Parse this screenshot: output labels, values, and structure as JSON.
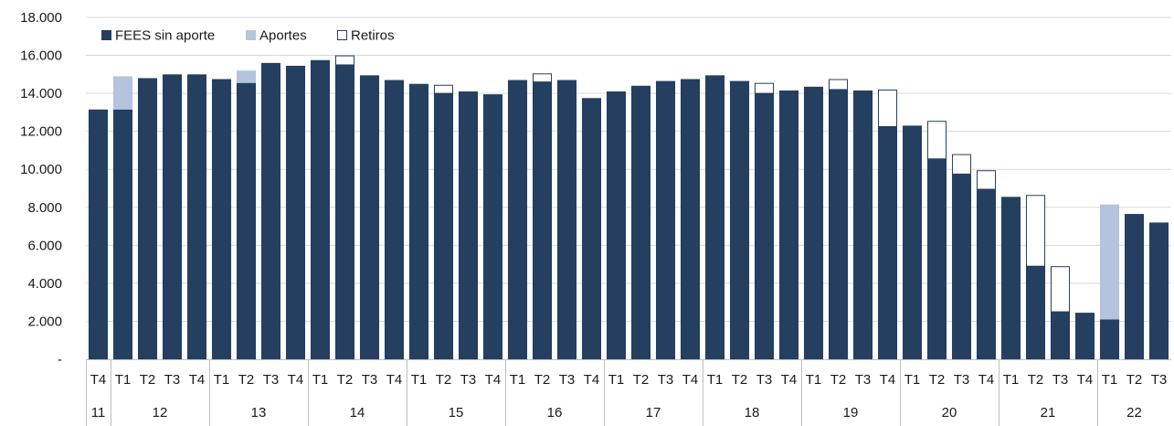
{
  "chart_data": {
    "type": "bar",
    "stacked": true,
    "ylim": [
      0,
      18000
    ],
    "yticks": [
      {
        "value": 0,
        "label": "-"
      },
      {
        "value": 2000,
        "label": "2.000"
      },
      {
        "value": 4000,
        "label": "4.000"
      },
      {
        "value": 6000,
        "label": "6.000"
      },
      {
        "value": 8000,
        "label": "8.000"
      },
      {
        "value": 10000,
        "label": "10.000"
      },
      {
        "value": 12000,
        "label": "12.000"
      },
      {
        "value": 14000,
        "label": "14.000"
      },
      {
        "value": 16000,
        "label": "16.000"
      },
      {
        "value": 18000,
        "label": "18.000"
      }
    ],
    "grid": true,
    "legend": {
      "position": "top-left",
      "items": [
        {
          "key": "base",
          "name": "FEES sin aporte",
          "color": "#243f60"
        },
        {
          "key": "aportes",
          "name": "Aportes",
          "color": "#b4c3de"
        },
        {
          "key": "retiros",
          "name": "Retiros",
          "color": "#ffffff"
        }
      ]
    },
    "categories": [
      "T4",
      "T1",
      "T2",
      "T3",
      "T4",
      "T1",
      "T2",
      "T3",
      "T4",
      "T1",
      "T2",
      "T3",
      "T4",
      "T1",
      "T2",
      "T3",
      "T4",
      "T1",
      "T2",
      "T3",
      "T4",
      "T1",
      "T2",
      "T3",
      "T4",
      "T1",
      "T2",
      "T3",
      "T4",
      "T1",
      "T2",
      "T3",
      "T4",
      "T1",
      "T2",
      "T3",
      "T4",
      "T1",
      "T2",
      "T3",
      "T4",
      "T1",
      "T2",
      "T3"
    ],
    "year_groups": [
      {
        "label": "11",
        "count": 1
      },
      {
        "label": "12",
        "count": 4
      },
      {
        "label": "13",
        "count": 4
      },
      {
        "label": "14",
        "count": 4
      },
      {
        "label": "15",
        "count": 4
      },
      {
        "label": "16",
        "count": 4
      },
      {
        "label": "17",
        "count": 4
      },
      {
        "label": "18",
        "count": 4
      },
      {
        "label": "19",
        "count": 4
      },
      {
        "label": "20",
        "count": 4
      },
      {
        "label": "21",
        "count": 4
      },
      {
        "label": "22",
        "count": 3
      }
    ],
    "series": [
      {
        "name": "FEES sin aporte",
        "values": [
          13150,
          13150,
          14800,
          15000,
          15000,
          14750,
          14550,
          15600,
          15450,
          15750,
          15500,
          14950,
          14700,
          14500,
          14000,
          14100,
          13950,
          14700,
          14600,
          14700,
          13750,
          14100,
          14400,
          14650,
          14750,
          14950,
          14650,
          14000,
          14150,
          14350,
          14200,
          14150,
          12250,
          12300,
          10550,
          9750,
          8950,
          8550,
          4900,
          2500,
          2450,
          2100,
          7650,
          7200
        ]
      },
      {
        "name": "Aportes",
        "values": [
          0,
          1750,
          0,
          0,
          0,
          0,
          650,
          0,
          0,
          0,
          0,
          0,
          0,
          0,
          0,
          0,
          0,
          0,
          0,
          0,
          0,
          0,
          0,
          0,
          0,
          0,
          0,
          0,
          0,
          0,
          0,
          0,
          0,
          0,
          0,
          0,
          0,
          0,
          0,
          0,
          0,
          6050,
          0,
          0
        ]
      },
      {
        "name": "Retiros",
        "values": [
          0,
          0,
          0,
          0,
          0,
          0,
          0,
          0,
          0,
          0,
          500,
          0,
          0,
          0,
          450,
          0,
          0,
          0,
          450,
          0,
          0,
          0,
          0,
          0,
          0,
          0,
          0,
          550,
          0,
          0,
          550,
          0,
          1950,
          0,
          2000,
          1050,
          1000,
          0,
          3750,
          2400,
          0,
          0,
          0,
          0
        ]
      }
    ]
  }
}
